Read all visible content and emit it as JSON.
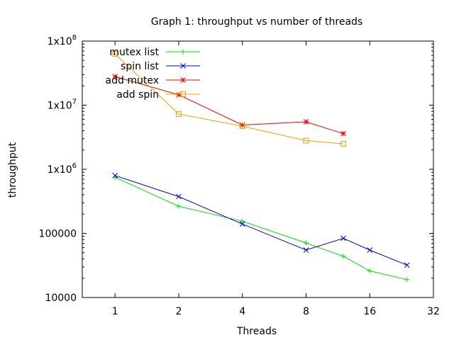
{
  "chart_data": {
    "type": "line",
    "title": "Graph 1: throughput vs number of threads",
    "xlabel": "Threads",
    "ylabel": "throughput",
    "x_scale": "log2",
    "y_scale": "log10",
    "xlim": [
      0.7,
      32
    ],
    "ylim": [
      10000,
      100000000
    ],
    "x_ticks": [
      {
        "value": 1,
        "label": "1"
      },
      {
        "value": 2,
        "label": "2"
      },
      {
        "value": 4,
        "label": "4"
      },
      {
        "value": 8,
        "label": "8"
      },
      {
        "value": 16,
        "label": "16"
      },
      {
        "value": 32,
        "label": "32"
      }
    ],
    "y_ticks": [
      {
        "value": 10000,
        "label": "10000"
      },
      {
        "value": 100000,
        "label": "100000"
      },
      {
        "value": 1000000,
        "label": "1x10^6"
      },
      {
        "value": 10000000,
        "label": "1x10^7"
      },
      {
        "value": 100000000,
        "label": "1x10^8"
      }
    ],
    "grid": false,
    "legend_position": "top-left",
    "series": [
      {
        "name": "mutex list",
        "color": "#00dd00",
        "marker": "plus",
        "x": [
          1,
          2,
          4,
          8,
          12,
          16,
          24
        ],
        "y": [
          750000,
          265000,
          155000,
          71000,
          44000,
          26000,
          19000
        ]
      },
      {
        "name": "spin list",
        "color": "#0000cc",
        "marker": "cross",
        "x": [
          1,
          2,
          4,
          8,
          12,
          16,
          24
        ],
        "y": [
          800000,
          375000,
          140000,
          55000,
          84000,
          55000,
          32000
        ]
      },
      {
        "name": "add mutex",
        "color": "#ee0000",
        "marker": "star",
        "x": [
          1,
          2,
          4,
          8,
          12
        ],
        "y": [
          28000000,
          14500000,
          4900000,
          5500000,
          3600000
        ]
      },
      {
        "name": "add spin",
        "color": "#f0a000",
        "marker": "square",
        "x": [
          1,
          2,
          4,
          8,
          12
        ],
        "y": [
          63000000,
          7300000,
          4700000,
          2800000,
          2500000
        ]
      }
    ]
  }
}
